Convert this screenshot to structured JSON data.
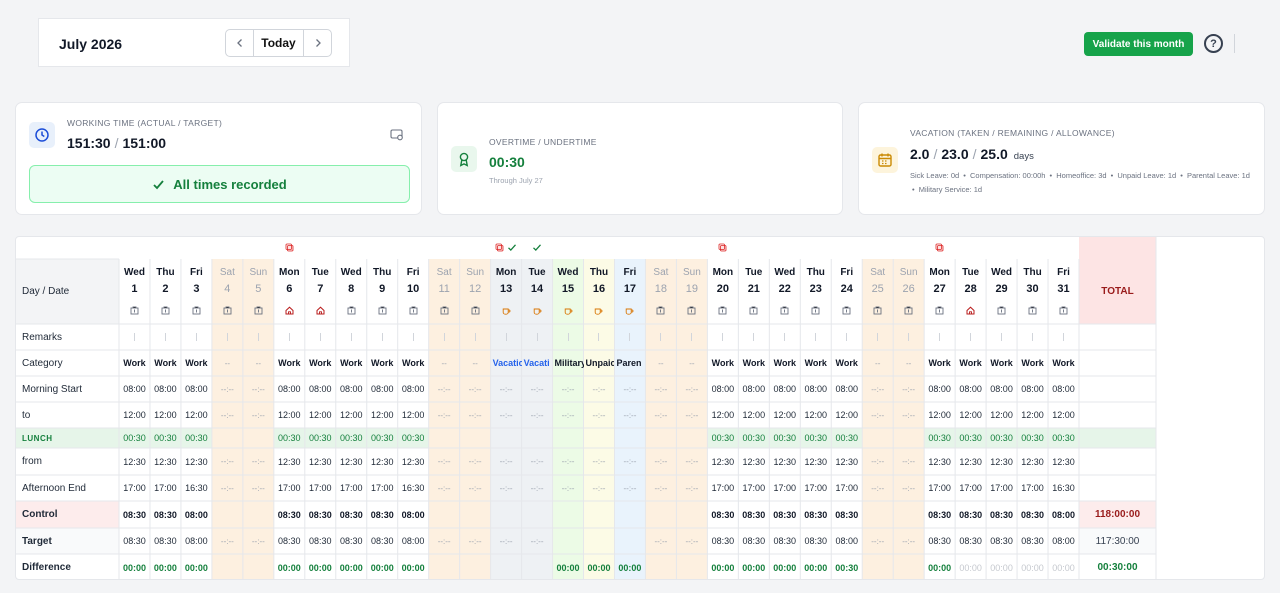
{
  "header": {
    "month_label": "July 2026",
    "prev_icon": "chevron-left-icon",
    "today_label": "Today",
    "next_icon": "chevron-right-icon",
    "validate_label": "Validate this month",
    "help_label": "?"
  },
  "cards": {
    "working": {
      "label": "WORKING TIME (ACTUAL / TARGET)",
      "actual": "151:30",
      "target": "151:00",
      "icon": "clock-icon",
      "status": "All times recorded"
    },
    "overtime": {
      "label": "OVERTIME / UNDERTIME",
      "value": "00:30",
      "sub": "Through July 27",
      "icon": "award-icon"
    },
    "vacation": {
      "label": "VACATION (TAKEN / REMAINING / ALLOWANCE)",
      "taken": "2.0",
      "remaining": "23.0",
      "allowance": "25.0",
      "unit": "days",
      "icon": "calendar-icon",
      "details": [
        "Sick Leave: 0d",
        "Compensation: 00:00h",
        "Homeoffice: 3d",
        "Unpaid Leave: 1d",
        "Parental Leave: 1d",
        "Military Service: 1d"
      ]
    }
  },
  "table": {
    "corner_label": "Day / Date",
    "total_label": "TOTAL",
    "row_labels": [
      "Remarks",
      "Category",
      "Morning Start",
      "to",
      "LUNCH",
      "from",
      "Afternoon End",
      "Control",
      "Target",
      "Difference"
    ],
    "totals": {
      "control": "118:00:00",
      "target": "117:30:00",
      "difference": "00:30:00"
    },
    "colors": {
      "weekend": "#fdf0e0",
      "vacation": "#eef1f4",
      "military": "#ecfbe6",
      "unpaid": "#fcfbe6",
      "parental": "#e9f3fc",
      "lunch": "#e6f5e9",
      "control": "#fdecec",
      "total": "#fde4e4",
      "green": "#15803d",
      "red": "#991b1b",
      "blue": "#2563eb"
    },
    "days": [
      {
        "dow": "Wed",
        "num": "1",
        "kind": "work",
        "cat": "Work",
        "ms": "08:00",
        "to": "12:00",
        "lunch": "00:30",
        "from": "12:30",
        "ae": "17:00",
        "control": "08:30",
        "target": "08:30",
        "diff": "00:00",
        "icon": "office-icon"
      },
      {
        "dow": "Thu",
        "num": "2",
        "kind": "work",
        "cat": "Work",
        "ms": "08:00",
        "to": "12:00",
        "lunch": "00:30",
        "from": "12:30",
        "ae": "17:00",
        "control": "08:30",
        "target": "08:30",
        "diff": "00:00",
        "icon": "office-icon"
      },
      {
        "dow": "Fri",
        "num": "3",
        "kind": "work",
        "cat": "Work",
        "ms": "08:00",
        "to": "12:00",
        "lunch": "00:30",
        "from": "12:30",
        "ae": "16:30",
        "control": "08:00",
        "target": "08:00",
        "diff": "00:00",
        "icon": "office-icon"
      },
      {
        "dow": "Sat",
        "num": "4",
        "kind": "weekend",
        "cat": "--",
        "ms": "--:--",
        "to": "--:--",
        "lunch": "",
        "from": "--:--",
        "ae": "--:--",
        "control": "",
        "target": "--:--",
        "diff": "",
        "icon": "office-icon"
      },
      {
        "dow": "Sun",
        "num": "5",
        "kind": "weekend",
        "cat": "--",
        "ms": "--:--",
        "to": "--:--",
        "lunch": "",
        "from": "--:--",
        "ae": "--:--",
        "control": "",
        "target": "--:--",
        "diff": "",
        "icon": "office-icon"
      },
      {
        "dow": "Mon",
        "num": "6",
        "kind": "work",
        "cat": "Work",
        "ms": "08:00",
        "to": "12:00",
        "lunch": "00:30",
        "from": "12:30",
        "ae": "17:00",
        "control": "08:30",
        "target": "08:30",
        "diff": "00:00",
        "icon": "home-icon",
        "copy": true
      },
      {
        "dow": "Tue",
        "num": "7",
        "kind": "work",
        "cat": "Work",
        "ms": "08:00",
        "to": "12:00",
        "lunch": "00:30",
        "from": "12:30",
        "ae": "17:00",
        "control": "08:30",
        "target": "08:30",
        "diff": "00:00",
        "icon": "home-icon"
      },
      {
        "dow": "Wed",
        "num": "8",
        "kind": "work",
        "cat": "Work",
        "ms": "08:00",
        "to": "12:00",
        "lunch": "00:30",
        "from": "12:30",
        "ae": "17:00",
        "control": "08:30",
        "target": "08:30",
        "diff": "00:00",
        "icon": "office-icon"
      },
      {
        "dow": "Thu",
        "num": "9",
        "kind": "work",
        "cat": "Work",
        "ms": "08:00",
        "to": "12:00",
        "lunch": "00:30",
        "from": "12:30",
        "ae": "17:00",
        "control": "08:30",
        "target": "08:30",
        "diff": "00:00",
        "icon": "office-icon"
      },
      {
        "dow": "Fri",
        "num": "10",
        "kind": "work",
        "cat": "Work",
        "ms": "08:00",
        "to": "12:00",
        "lunch": "00:30",
        "from": "12:30",
        "ae": "16:30",
        "control": "08:00",
        "target": "08:00",
        "diff": "00:00",
        "icon": "office-icon"
      },
      {
        "dow": "Sat",
        "num": "11",
        "kind": "weekend",
        "cat": "--",
        "ms": "--:--",
        "to": "--:--",
        "lunch": "",
        "from": "--:--",
        "ae": "--:--",
        "control": "",
        "target": "--:--",
        "diff": "",
        "icon": "office-icon"
      },
      {
        "dow": "Sun",
        "num": "12",
        "kind": "weekend",
        "cat": "--",
        "ms": "--:--",
        "to": "--:--",
        "lunch": "",
        "from": "--:--",
        "ae": "--:--",
        "control": "",
        "target": "--:--",
        "diff": "",
        "icon": "office-icon"
      },
      {
        "dow": "Mon",
        "num": "13",
        "kind": "vacation",
        "cat": "Vacatic",
        "ms": "--:--",
        "to": "--:--",
        "lunch": "",
        "from": "--:--",
        "ae": "--:--",
        "control": "",
        "target": "--:--",
        "diff": "",
        "icon": "coffee-icon",
        "copy": true,
        "check": true
      },
      {
        "dow": "Tue",
        "num": "14",
        "kind": "vacation",
        "cat": "Vacati",
        "ms": "--:--",
        "to": "--:--",
        "lunch": "",
        "from": "--:--",
        "ae": "--:--",
        "control": "",
        "target": "--:--",
        "diff": "",
        "icon": "coffee-icon",
        "check": true
      },
      {
        "dow": "Wed",
        "num": "15",
        "kind": "military",
        "cat": "Military",
        "ms": "--:--",
        "to": "--:--",
        "lunch": "",
        "from": "--:--",
        "ae": "--:--",
        "control": "",
        "target": "",
        "diff": "00:00",
        "icon": "coffee-icon"
      },
      {
        "dow": "Thu",
        "num": "16",
        "kind": "unpaid",
        "cat": "Unpaic",
        "ms": "--:--",
        "to": "--:--",
        "lunch": "",
        "from": "--:--",
        "ae": "--:--",
        "control": "",
        "target": "",
        "diff": "00:00",
        "icon": "coffee-icon"
      },
      {
        "dow": "Fri",
        "num": "17",
        "kind": "parental",
        "cat": "Paren",
        "ms": "--:--",
        "to": "--:--",
        "lunch": "",
        "from": "--:--",
        "ae": "--:--",
        "control": "",
        "target": "",
        "diff": "00:00",
        "icon": "coffee-icon"
      },
      {
        "dow": "Sat",
        "num": "18",
        "kind": "weekend",
        "cat": "--",
        "ms": "--:--",
        "to": "--:--",
        "lunch": "",
        "from": "--:--",
        "ae": "--:--",
        "control": "",
        "target": "--:--",
        "diff": "",
        "icon": "office-icon"
      },
      {
        "dow": "Sun",
        "num": "19",
        "kind": "weekend",
        "cat": "--",
        "ms": "--:--",
        "to": "--:--",
        "lunch": "",
        "from": "--:--",
        "ae": "--:--",
        "control": "",
        "target": "--:--",
        "diff": "",
        "icon": "office-icon"
      },
      {
        "dow": "Mon",
        "num": "20",
        "kind": "work",
        "cat": "Work",
        "ms": "08:00",
        "to": "12:00",
        "lunch": "00:30",
        "from": "12:30",
        "ae": "17:00",
        "control": "08:30",
        "target": "08:30",
        "diff": "00:00",
        "icon": "office-icon",
        "copy": true
      },
      {
        "dow": "Tue",
        "num": "21",
        "kind": "work",
        "cat": "Work",
        "ms": "08:00",
        "to": "12:00",
        "lunch": "00:30",
        "from": "12:30",
        "ae": "17:00",
        "control": "08:30",
        "target": "08:30",
        "diff": "00:00",
        "icon": "office-icon"
      },
      {
        "dow": "Wed",
        "num": "22",
        "kind": "work",
        "cat": "Work",
        "ms": "08:00",
        "to": "12:00",
        "lunch": "00:30",
        "from": "12:30",
        "ae": "17:00",
        "control": "08:30",
        "target": "08:30",
        "diff": "00:00",
        "icon": "office-icon"
      },
      {
        "dow": "Thu",
        "num": "23",
        "kind": "work",
        "cat": "Work",
        "ms": "08:00",
        "to": "12:00",
        "lunch": "00:30",
        "from": "12:30",
        "ae": "17:00",
        "control": "08:30",
        "target": "08:30",
        "diff": "00:00",
        "icon": "office-icon"
      },
      {
        "dow": "Fri",
        "num": "24",
        "kind": "work",
        "cat": "Work",
        "ms": "08:00",
        "to": "12:00",
        "lunch": "00:30",
        "from": "12:30",
        "ae": "17:00",
        "control": "08:30",
        "target": "08:00",
        "diff": "00:30",
        "icon": "office-icon"
      },
      {
        "dow": "Sat",
        "num": "25",
        "kind": "weekend",
        "cat": "--",
        "ms": "--:--",
        "to": "--:--",
        "lunch": "",
        "from": "--:--",
        "ae": "--:--",
        "control": "",
        "target": "--:--",
        "diff": "",
        "icon": "office-icon"
      },
      {
        "dow": "Sun",
        "num": "26",
        "kind": "weekend",
        "cat": "--",
        "ms": "--:--",
        "to": "--:--",
        "lunch": "",
        "from": "--:--",
        "ae": "--:--",
        "control": "",
        "target": "--:--",
        "diff": "",
        "icon": "office-icon"
      },
      {
        "dow": "Mon",
        "num": "27",
        "kind": "work",
        "cat": "Work",
        "ms": "08:00",
        "to": "12:00",
        "lunch": "00:30",
        "from": "12:30",
        "ae": "17:00",
        "control": "08:30",
        "target": "08:30",
        "diff": "00:00",
        "icon": "office-icon",
        "copy": true
      },
      {
        "dow": "Tue",
        "num": "28",
        "kind": "work",
        "cat": "Work",
        "ms": "08:00",
        "to": "12:00",
        "lunch": "00:30",
        "from": "12:30",
        "ae": "17:00",
        "control": "08:30",
        "target": "08:30",
        "diff": "00:00",
        "icon": "home-icon",
        "future": true
      },
      {
        "dow": "Wed",
        "num": "29",
        "kind": "work",
        "cat": "Work",
        "ms": "08:00",
        "to": "12:00",
        "lunch": "00:30",
        "from": "12:30",
        "ae": "17:00",
        "control": "08:30",
        "target": "08:30",
        "diff": "00:00",
        "icon": "office-icon",
        "future": true
      },
      {
        "dow": "Thu",
        "num": "30",
        "kind": "work",
        "cat": "Work",
        "ms": "08:00",
        "to": "12:00",
        "lunch": "00:30",
        "from": "12:30",
        "ae": "17:00",
        "control": "08:30",
        "target": "08:30",
        "diff": "00:00",
        "icon": "office-icon",
        "future": true
      },
      {
        "dow": "Fri",
        "num": "31",
        "kind": "work",
        "cat": "Work",
        "ms": "08:00",
        "to": "12:00",
        "lunch": "00:30",
        "from": "12:30",
        "ae": "16:30",
        "control": "08:00",
        "target": "08:00",
        "diff": "00:00",
        "icon": "office-icon",
        "future": true
      }
    ]
  }
}
